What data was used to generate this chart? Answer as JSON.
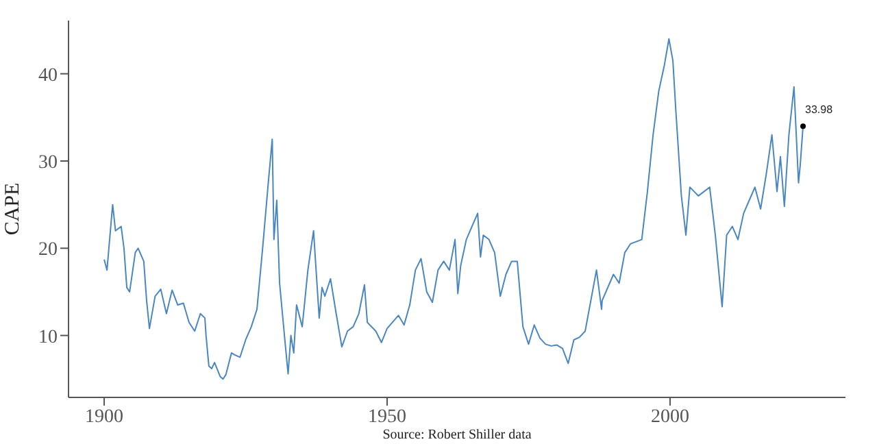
{
  "chart_data": {
    "type": "line",
    "ylabel": "CAPE",
    "xlabel": "Source: Robert Shiller data",
    "xlim": [
      1893.7,
      2031
    ],
    "ylim": [
      2.9,
      46.1
    ],
    "xticks": [
      1900,
      1950,
      2000
    ],
    "yticks": [
      10,
      20,
      30,
      40
    ],
    "grid": false,
    "marker": "none",
    "line_style": "solid",
    "series": [
      {
        "color": "#4a86c0",
        "x": [
          1900,
          1900.5,
          1901.5,
          1902,
          1903,
          1903.5,
          1904,
          1904.5,
          1905.5,
          1906,
          1907,
          1907.5,
          1908,
          1909,
          1910,
          1911,
          1912,
          1913,
          1914,
          1915,
          1916,
          1917,
          1917.8,
          1918,
          1918.5,
          1919,
          1919.5,
          1920.5,
          1921,
          1921.5,
          1922.5,
          1923,
          1924,
          1925,
          1926,
          1927,
          1928,
          1929,
          1929.7,
          1930,
          1930.5,
          1931,
          1932,
          1932.5,
          1933,
          1933.5,
          1934,
          1935,
          1936,
          1937,
          1937.5,
          1938,
          1938.5,
          1939,
          1940,
          1941,
          1942,
          1943,
          1944,
          1945,
          1946,
          1946.5,
          1948,
          1949,
          1950,
          1952,
          1953,
          1954,
          1955,
          1956,
          1957,
          1958,
          1959,
          1960,
          1961,
          1962,
          1962.5,
          1963,
          1964,
          1965,
          1966,
          1966.5,
          1967,
          1968,
          1969,
          1970,
          1971,
          1972,
          1973,
          1974,
          1975,
          1976,
          1977,
          1978,
          1979,
          1980,
          1981,
          1982,
          1983,
          1984,
          1985,
          1987,
          1987.9,
          1988,
          1990,
          1991,
          1992,
          1993,
          1995,
          1996,
          1997,
          1998,
          1999,
          1999.8,
          2000.5,
          2001,
          2002,
          2002.8,
          2003.5,
          2005,
          2007,
          2008,
          2009.2,
          2010,
          2011,
          2012,
          2013,
          2014,
          2015,
          2016,
          2017,
          2018,
          2018.9,
          2019.5,
          2020.2,
          2021,
          2021.9,
          2022.7,
          2023,
          2023.5
        ],
        "values": [
          18.7,
          17.5,
          25,
          22,
          22.5,
          20,
          15.5,
          15,
          19.5,
          20,
          18.5,
          14,
          10.8,
          14.5,
          15.3,
          12.5,
          15.2,
          13.5,
          13.7,
          11.5,
          10.5,
          12.5,
          12,
          10,
          6.5,
          6.2,
          6.9,
          5.3,
          5,
          5.5,
          8,
          7.8,
          7.5,
          9.5,
          11,
          13,
          20,
          27.5,
          32.5,
          21,
          25.5,
          16,
          9,
          5.6,
          10,
          8,
          13.5,
          11,
          17.5,
          22,
          17,
          12,
          15.5,
          14.5,
          16.5,
          12.5,
          8.7,
          10.5,
          11,
          12.5,
          15.8,
          11.5,
          10.5,
          9.2,
          10.8,
          12.3,
          11.2,
          13.5,
          17.5,
          18.8,
          15,
          13.8,
          17.5,
          18.5,
          17.5,
          21,
          14.8,
          18,
          21,
          22.5,
          24,
          19,
          21.5,
          21,
          19.5,
          14.5,
          17,
          18.5,
          18.5,
          11,
          9,
          11.2,
          9.7,
          9,
          8.8,
          8.9,
          8.5,
          6.8,
          9.5,
          9.8,
          10.5,
          17.5,
          13,
          14,
          17,
          16,
          19.5,
          20.5,
          21,
          26.5,
          33,
          38,
          41,
          44,
          41.5,
          36,
          26,
          21.5,
          27,
          26,
          27,
          21.5,
          13.3,
          21.5,
          22.5,
          21,
          24,
          25.5,
          27,
          24.5,
          28.5,
          33,
          26.5,
          30.5,
          24.8,
          33,
          38.5,
          27.5,
          29.5,
          34
        ]
      },
      {
        "type": "scatter",
        "color": "#000000",
        "marker": "circle",
        "x": [
          2023.5
        ],
        "values": [
          33.98
        ],
        "value_labels": [
          "33.98"
        ]
      }
    ]
  }
}
